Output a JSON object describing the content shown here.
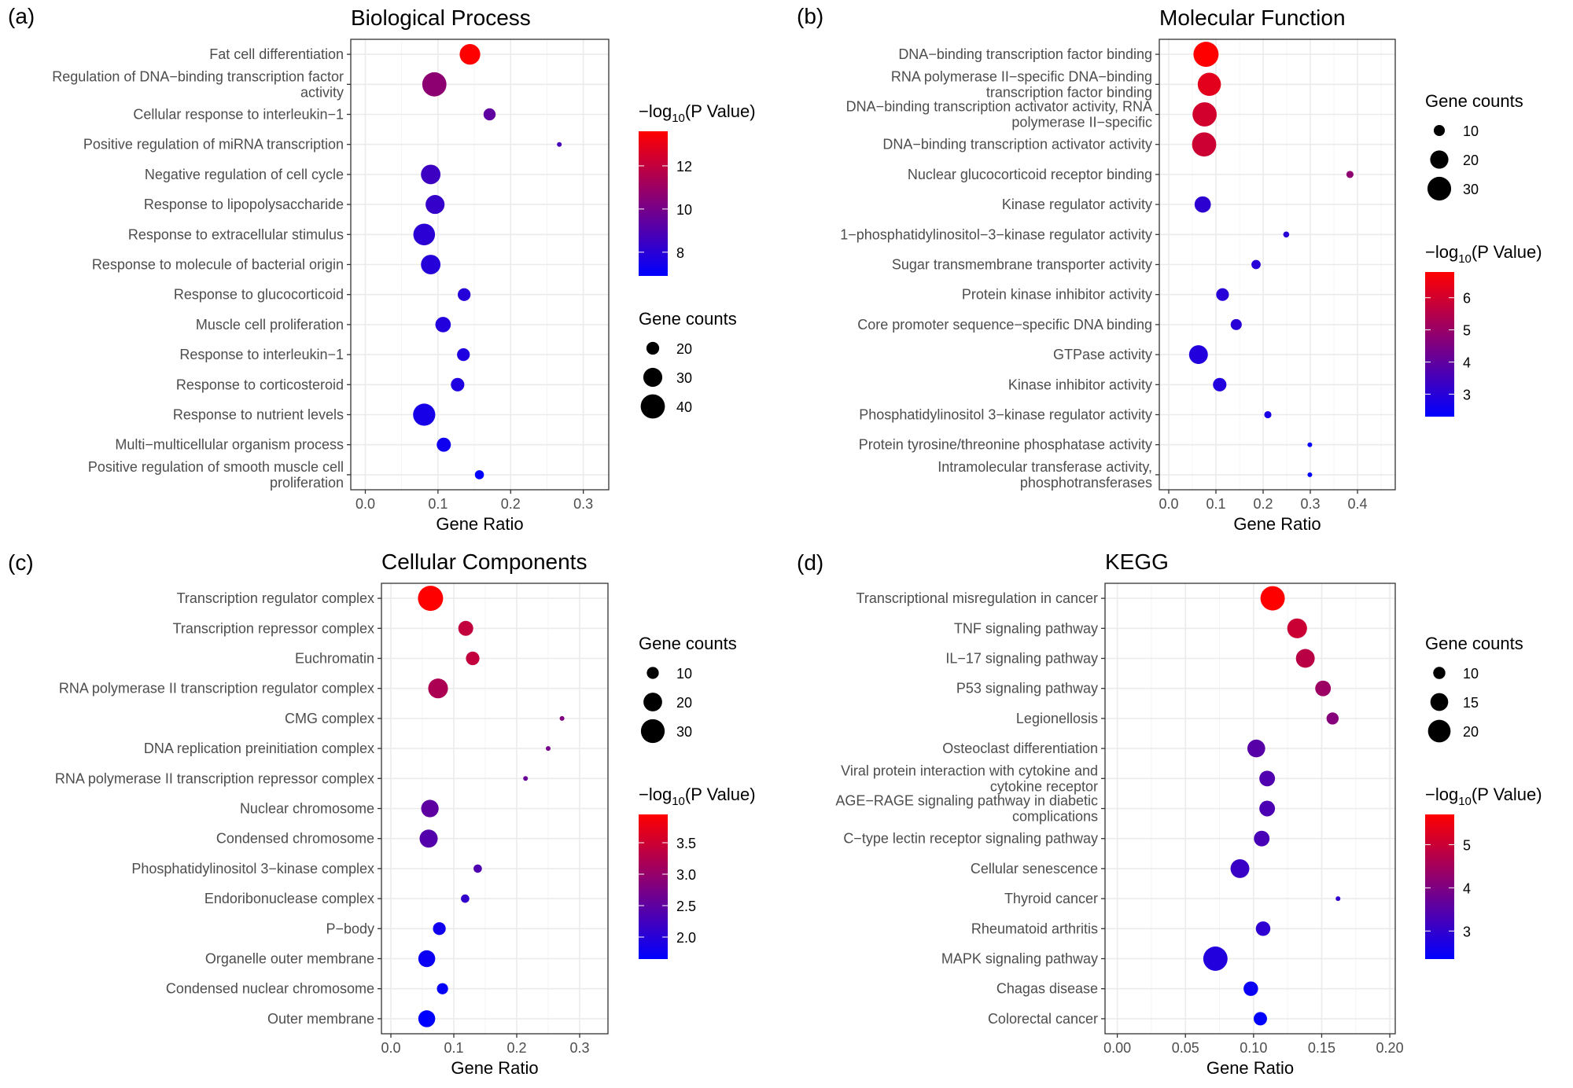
{
  "figure": {
    "size_legend_title": "Gene counts",
    "color_legend_title_prefix": "−log",
    "color_legend_title_sub": "10",
    "color_legend_title_suffix": "(P Value)",
    "color_low": "#0000ff",
    "color_high": "#ff0000"
  },
  "chart_data": [
    {
      "type": "scatter",
      "panel_label": "(a)",
      "title": "Biological Process",
      "xlabel": "Gene Ratio",
      "ylabel": "",
      "xlim": [
        -0.02,
        0.335
      ],
      "xticks": [
        0.0,
        0.1,
        0.2,
        0.3
      ],
      "xtick_labels": [
        "0.0",
        "0.1",
        "0.2",
        "0.3"
      ],
      "grid": true,
      "legend_order": "color-first",
      "legend_position": "right",
      "color_scale": {
        "min": 6.9,
        "max": 13.6,
        "ticks": [
          8,
          10,
          12
        ],
        "tick_labels": [
          "8",
          "10",
          "12"
        ]
      },
      "size_scale": {
        "min": 10,
        "max": 42,
        "breaks": [
          20,
          30,
          40
        ],
        "break_labels": [
          "20",
          "30",
          "40"
        ]
      },
      "categories": [
        "Fat cell differentiation",
        "Regulation of DNA−binding transcription factor\nactivity",
        "Cellular response to interleukin−1",
        "Positive regulation of miRNA transcription",
        "Negative regulation of cell cycle",
        "Response to lipopolysaccharide",
        "Response to extracellular stimulus",
        "Response to molecule of bacterial origin",
        "Response to glucocorticoid",
        "Muscle cell proliferation",
        "Response to interleukin−1",
        "Response to corticosteroid",
        "Response to nutrient levels",
        "Multi−multicellular organism process",
        "Positive regulation of smooth muscle cell\nproliferation"
      ],
      "gene_ratio": [
        0.144,
        0.095,
        0.171,
        0.267,
        0.09,
        0.096,
        0.081,
        0.09,
        0.136,
        0.107,
        0.135,
        0.127,
        0.081,
        0.108,
        0.157
      ],
      "gene_counts": [
        33,
        40,
        19,
        10,
        31,
        30,
        35,
        31,
        20,
        24,
        20,
        21,
        36,
        22,
        15
      ],
      "neg_log10_p": [
        13.6,
        10.6,
        9.4,
        8.7,
        8.5,
        8.3,
        8.0,
        7.9,
        7.9,
        7.8,
        7.7,
        7.7,
        7.5,
        7.3,
        7.0
      ]
    },
    {
      "type": "scatter",
      "panel_label": "(b)",
      "title": "Molecular Function",
      "xlabel": "Gene Ratio",
      "ylabel": "",
      "xlim": [
        -0.02,
        0.48
      ],
      "xticks": [
        0.0,
        0.1,
        0.2,
        0.3,
        0.4
      ],
      "xtick_labels": [
        "0.0",
        "0.1",
        "0.2",
        "0.3",
        "0.4"
      ],
      "grid": true,
      "legend_order": "size-first",
      "legend_position": "right",
      "color_scale": {
        "min": 2.3,
        "max": 6.8,
        "ticks": [
          3,
          4,
          5,
          6
        ],
        "tick_labels": [
          "3",
          "4",
          "5",
          "6"
        ]
      },
      "size_scale": {
        "min": 4,
        "max": 33,
        "breaks": [
          10,
          20,
          30
        ],
        "break_labels": [
          "10",
          "20",
          "30"
        ]
      },
      "categories": [
        "DNA−binding transcription factor binding",
        "RNA polymerase II−specific DNA−binding\ntranscription factor binding",
        "DNA−binding transcription activator activity, RNA\npolymerase II−specific",
        "DNA−binding transcription activator activity",
        "Nuclear glucocorticoid receptor binding",
        "Kinase regulator activity",
        "1−phosphatidylinositol−3−kinase regulator activity",
        "Sugar transmembrane transporter activity",
        "Protein kinase inhibitor activity",
        "Core promoter sequence−specific DNA binding",
        "GTPase activity",
        "Kinase inhibitor activity",
        "Phosphatidylinositol 3−kinase regulator activity",
        "Protein tyrosine/threonine phosphatase activity",
        "Intramolecular transferase activity,\nphosphotransferases"
      ],
      "gene_ratio": [
        0.079,
        0.086,
        0.076,
        0.075,
        0.384,
        0.072,
        0.249,
        0.185,
        0.114,
        0.143,
        0.063,
        0.108,
        0.21,
        0.299,
        0.299
      ],
      "gene_counts": [
        33,
        29,
        31,
        31,
        6,
        17,
        5,
        8,
        12,
        10,
        21,
        13,
        6,
        3,
        3
      ],
      "neg_log10_p": [
        6.8,
        6.3,
        6.0,
        5.9,
        4.8,
        3.1,
        3.0,
        3.0,
        3.0,
        3.0,
        2.9,
        2.9,
        2.7,
        2.4,
        2.3
      ]
    },
    {
      "type": "scatter",
      "panel_label": "(c)",
      "title": "Cellular Components",
      "xlabel": "Gene Ratio",
      "ylabel": "",
      "xlim": [
        -0.015,
        0.345
      ],
      "xticks": [
        0.0,
        0.1,
        0.2,
        0.3
      ],
      "xtick_labels": [
        "0.0",
        "0.1",
        "0.2",
        "0.3"
      ],
      "grid": true,
      "legend_order": "size-first",
      "legend_position": "right",
      "color_scale": {
        "min": 1.65,
        "max": 3.95,
        "ticks": [
          2.0,
          2.5,
          3.0,
          3.5
        ],
        "tick_labels": [
          "2.0",
          "2.5",
          "3.0",
          "3.5"
        ]
      },
      "size_scale": {
        "min": 3,
        "max": 33,
        "breaks": [
          10,
          20,
          30
        ],
        "break_labels": [
          "10",
          "20",
          "30"
        ]
      },
      "categories": [
        "Transcription regulator complex",
        "Transcription repressor complex",
        "Euchromatin",
        "RNA polymerase II transcription regulator complex",
        "CMG complex",
        "DNA replication preinitiation complex",
        "RNA polymerase II transcription repressor complex",
        "Nuclear chromosome",
        "Condensed chromosome",
        "Phosphatidylinositol 3−kinase complex",
        "Endoribonuclease complex",
        "P−body",
        "Organelle outer membrane",
        "Condensed nuclear chromosome",
        "Outer membrane"
      ],
      "gene_ratio": [
        0.063,
        0.119,
        0.13,
        0.075,
        0.272,
        0.25,
        0.214,
        0.062,
        0.06,
        0.138,
        0.118,
        0.077,
        0.057,
        0.082,
        0.057
      ],
      "gene_counts": [
        33,
        14,
        12,
        22,
        3,
        3,
        3,
        18,
        19,
        6,
        6,
        11,
        17,
        9,
        17
      ],
      "neg_log10_p": [
        3.95,
        3.4,
        3.4,
        3.2,
        2.8,
        2.7,
        2.6,
        2.5,
        2.4,
        2.35,
        2.1,
        1.8,
        1.75,
        1.7,
        1.65
      ]
    },
    {
      "type": "scatter",
      "panel_label": "(d)",
      "title": "KEGG",
      "xlabel": "Gene Ratio",
      "ylabel": "",
      "xlim": [
        -0.009,
        0.204
      ],
      "xticks": [
        0.0,
        0.05,
        0.1,
        0.15,
        0.2
      ],
      "xtick_labels": [
        "0.00",
        "0.05",
        "0.10",
        "0.15",
        "0.20"
      ],
      "grid": true,
      "legend_order": "size-first",
      "legend_position": "right",
      "color_scale": {
        "min": 2.35,
        "max": 5.7,
        "ticks": [
          3,
          4,
          5
        ],
        "tick_labels": [
          "3",
          "4",
          "5"
        ]
      },
      "size_scale": {
        "min": 5,
        "max": 23,
        "breaks": [
          10,
          15,
          20
        ],
        "break_labels": [
          "10",
          "15",
          "20"
        ]
      },
      "categories": [
        "Transcriptional misregulation in cancer",
        "TNF signaling pathway",
        "IL−17 signaling pathway",
        "P53 signaling pathway",
        "Legionellosis",
        "Osteoclast differentiation",
        "Viral protein interaction with cytokine and\ncytokine receptor",
        "AGE−RAGE signaling pathway in diabetic\ncomplications",
        "C−type lectin receptor signaling pathway",
        "Cellular senescence",
        "Thyroid cancer",
        "Rheumatoid arthritis",
        "MAPK signaling pathway",
        "Chagas disease",
        "Colorectal cancer"
      ],
      "gene_ratio": [
        0.114,
        0.132,
        0.138,
        0.151,
        0.158,
        0.102,
        0.11,
        0.11,
        0.106,
        0.09,
        0.162,
        0.107,
        0.072,
        0.098,
        0.105
      ],
      "gene_counts": [
        22,
        17,
        16,
        13,
        10,
        15,
        13,
        13,
        13,
        16,
        5,
        12,
        22,
        12,
        11
      ],
      "neg_log10_p": [
        5.7,
        5.0,
        4.8,
        4.4,
        4.1,
        3.5,
        3.4,
        3.35,
        3.3,
        3.1,
        3.0,
        2.95,
        2.8,
        2.5,
        2.35
      ]
    }
  ]
}
